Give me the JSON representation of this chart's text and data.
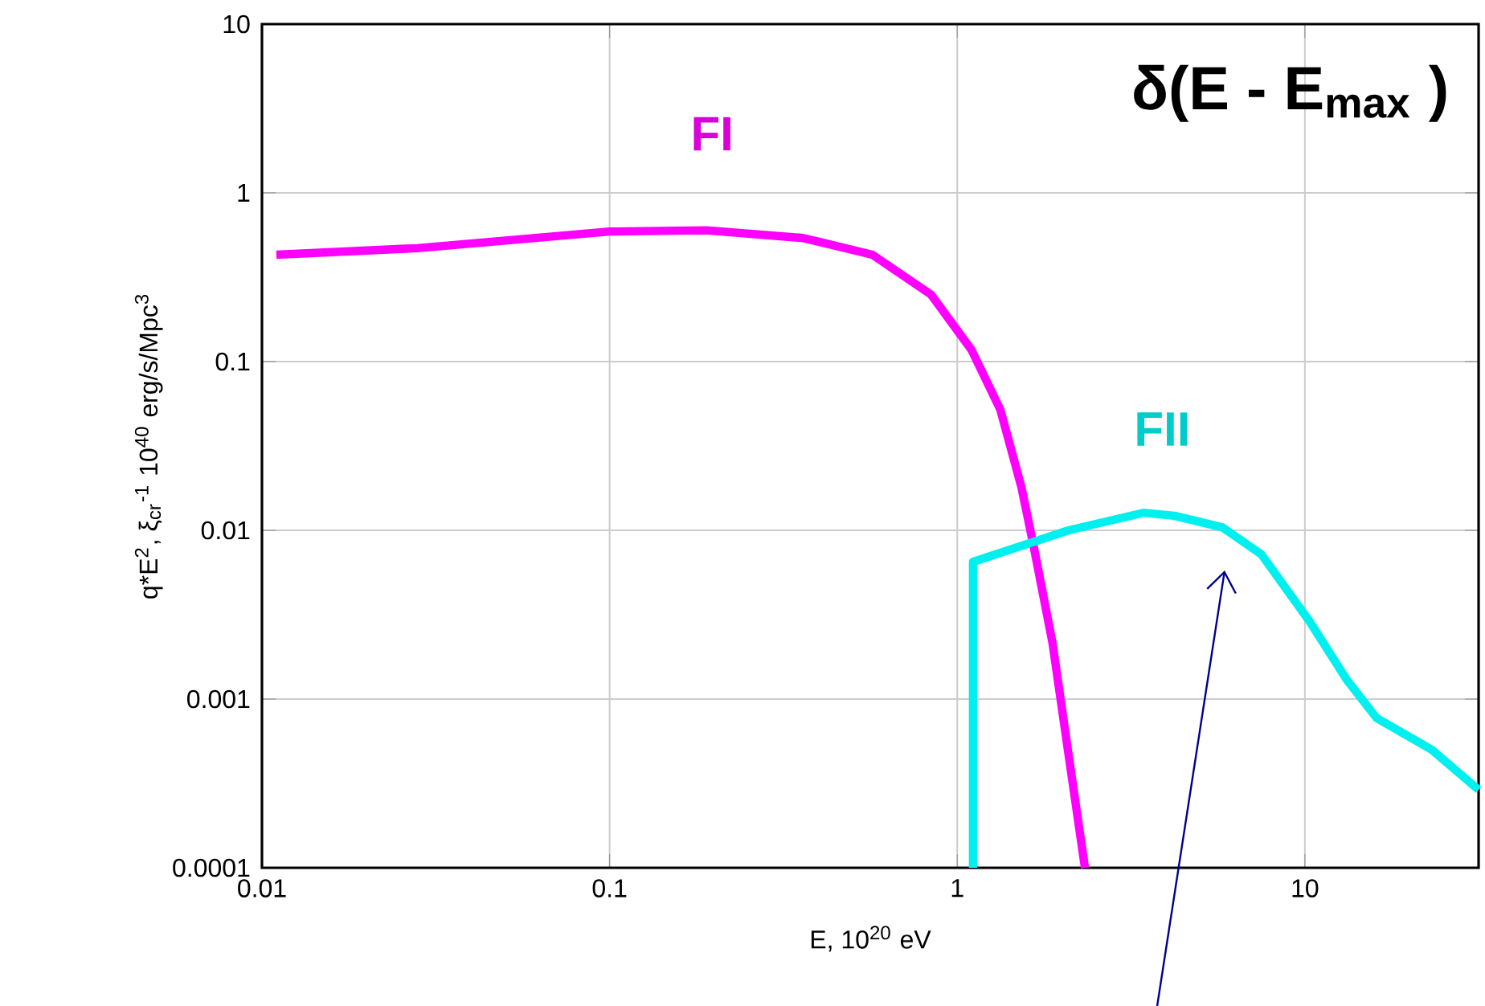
{
  "chart_data": {
    "type": "line",
    "xlabel": "E, 10$^{20}$ eV",
    "ylabel": "q*E$^{2}$, ξ$_{cr}$$^{-1}$ 10$^{40}$ erg/s/Mpc$^{3}$",
    "annotations": [
      "δ(E - E$_{max}$ )"
    ],
    "log": "xy",
    "grid": true,
    "marker": "none",
    "line_style": "solid",
    "xlim": [
      0.01,
      31.6
    ],
    "ylim": [
      0.0001,
      10
    ],
    "xticks": [
      0.01,
      0.1,
      1,
      10
    ],
    "yticks": [
      0.0001,
      0.001,
      0.01,
      0.1,
      1,
      10
    ],
    "series": [
      {
        "name": "FI",
        "color": "#ff00ff",
        "x": [
          0.011,
          0.028,
          0.1,
          0.19,
          0.36,
          0.57,
          0.84,
          1.1,
          1.33,
          1.53,
          1.66,
          1.88,
          2.09,
          2.33
        ],
        "values": [
          0.43,
          0.47,
          0.59,
          0.6,
          0.54,
          0.43,
          0.25,
          0.117,
          0.052,
          0.018,
          0.008,
          0.00215,
          0.00047,
          0.0001
        ]
      },
      {
        "name": "FII",
        "color": "#00f0f0",
        "x": [
          1.11,
          1.11,
          2.09,
          3.43,
          4.21,
          5.8,
          7.5,
          10.3,
          13.2,
          16.1,
          23.2,
          31.6
        ],
        "values": [
          0.0001,
          0.0065,
          0.01,
          0.0127,
          0.0122,
          0.0104,
          0.0072,
          0.0029,
          0.0013,
          0.00077,
          0.0005,
          0.00029
        ]
      }
    ]
  }
}
